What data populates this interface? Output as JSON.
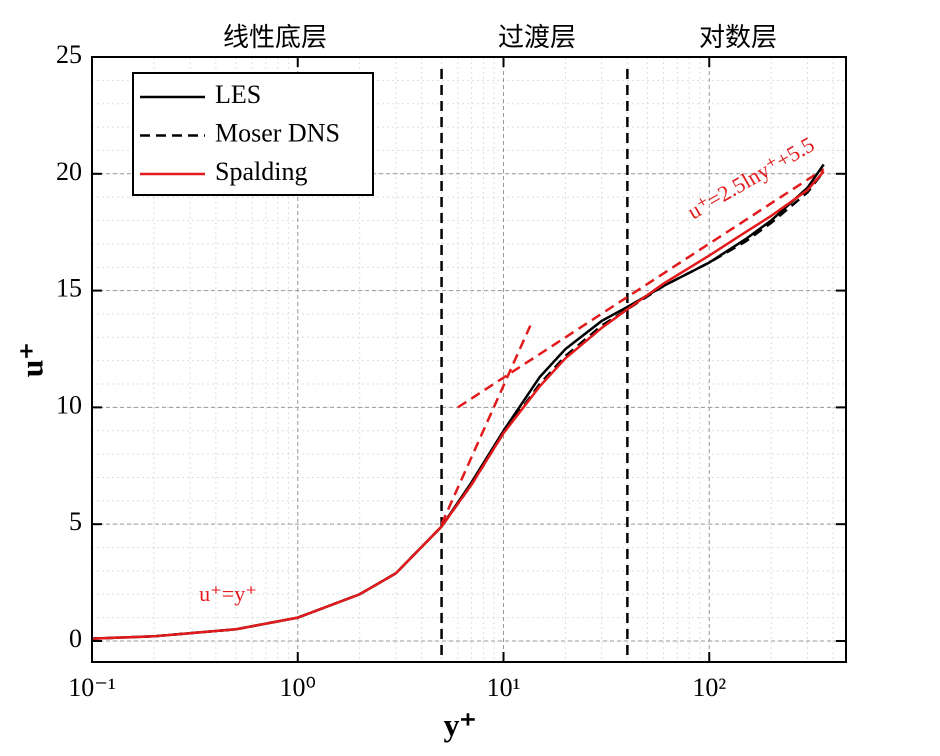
{
  "chart_data": {
    "type": "line",
    "xlabel": "y⁺",
    "ylabel": "u⁺",
    "xscale": "log",
    "grid": true,
    "legend": "upper left",
    "xlim": [
      0.1,
      462
    ],
    "ylim": [
      -0.9,
      25
    ],
    "xticks": [
      {
        "value": 0.1,
        "label": "10⁻¹"
      },
      {
        "value": 1,
        "label": "10⁰"
      },
      {
        "value": 10,
        "label": "10¹"
      },
      {
        "value": 100,
        "label": "10²"
      }
    ],
    "yticks": [
      0,
      5,
      10,
      15,
      20,
      25
    ],
    "vlines": [
      5,
      40
    ],
    "region_labels": [
      "线性底层",
      "过渡层",
      "对数层"
    ],
    "annotations": [
      "u⁺=y⁺",
      "u⁺=2.5lny⁺+5.5"
    ],
    "series": [
      {
        "name": "LES",
        "color": "#000000",
        "dash": false,
        "x": [
          0.1,
          0.2,
          0.5,
          1,
          2,
          3,
          5,
          7,
          10,
          15,
          20,
          30,
          40,
          60,
          100,
          150,
          200,
          300,
          360
        ],
        "values": [
          0.1,
          0.2,
          0.5,
          1.0,
          2.0,
          2.9,
          4.9,
          6.8,
          9.0,
          11.3,
          12.5,
          13.7,
          14.3,
          15.2,
          16.2,
          17.2,
          18.0,
          19.4,
          20.4
        ]
      },
      {
        "name": "Moser DNS",
        "color": "#000000",
        "dash": true,
        "x": [
          0.1,
          0.2,
          0.5,
          1,
          2,
          3,
          5,
          7,
          10,
          15,
          20,
          30,
          40,
          60,
          100,
          150,
          200,
          300,
          360
        ],
        "values": [
          0.1,
          0.2,
          0.5,
          1.0,
          2.0,
          2.9,
          4.9,
          6.7,
          8.9,
          11.0,
          12.2,
          13.5,
          14.2,
          15.2,
          16.2,
          17.1,
          17.9,
          19.2,
          20.1
        ]
      },
      {
        "name": "Spalding",
        "color": "#e31a1c",
        "dash": false,
        "x": [
          0.1,
          0.2,
          0.5,
          1,
          2,
          3,
          5,
          7,
          10,
          15,
          20,
          30,
          40,
          60,
          100,
          150,
          200,
          300,
          360
        ],
        "values": [
          0.1,
          0.2,
          0.5,
          1.0,
          2.0,
          2.9,
          4.9,
          6.7,
          8.9,
          10.9,
          12.1,
          13.4,
          14.2,
          15.3,
          16.5,
          17.5,
          18.2,
          19.3,
          20.1
        ]
      }
    ],
    "reference_lines": [
      {
        "color": "#e31a1c",
        "x": [
          5,
          13.5
        ],
        "values": [
          5,
          13.5
        ]
      },
      {
        "color": "#e31a1c",
        "x": [
          6,
          360
        ],
        "values": [
          10.0,
          20.2
        ]
      }
    ]
  }
}
